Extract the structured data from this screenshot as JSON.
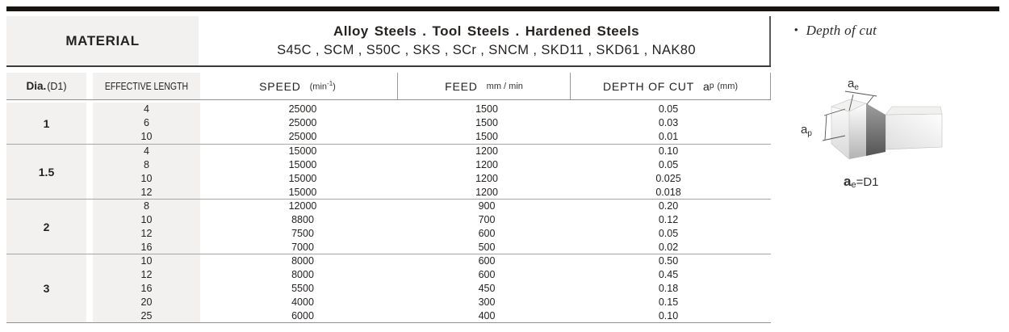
{
  "header": {
    "material_label": "MATERIAL",
    "steel_title": "Alloy  Steels . Tool Steels . Hardened Steels",
    "steel_grades": "S45C , SCM , S50C , SKS , SCr , SNCM , SKD11 , SKD61 , NAK80"
  },
  "columns": {
    "dia_bold": "Dia.",
    "dia_normal": "(D1)",
    "effective_length": "EFFECTIVE LENGTH",
    "speed_label": "SPEED",
    "speed_unit_pre": "(min",
    "speed_unit_sup": "-1",
    "speed_unit_post": ")",
    "feed_label": "FEED",
    "feed_unit": "mm / min",
    "depth_label": "DEPTH OF CUT",
    "depth_sym": "a",
    "depth_sym_sub": "p",
    "depth_unit": "(mm)"
  },
  "table": {
    "groups": [
      {
        "dia": "1",
        "rows": [
          [
            "4",
            "25000",
            "1500",
            "0.05"
          ],
          [
            "6",
            "25000",
            "1500",
            "0.03"
          ],
          [
            "10",
            "25000",
            "1500",
            "0.01"
          ]
        ]
      },
      {
        "dia": "1.5",
        "rows": [
          [
            "4",
            "15000",
            "1200",
            "0.10"
          ],
          [
            "8",
            "15000",
            "1200",
            "0.05"
          ],
          [
            "10",
            "15000",
            "1200",
            "0.025"
          ],
          [
            "12",
            "15000",
            "1200",
            "0.018"
          ]
        ]
      },
      {
        "dia": "2",
        "rows": [
          [
            "8",
            "12000",
            "900",
            "0.20"
          ],
          [
            "10",
            "8800",
            "700",
            "0.12"
          ],
          [
            "12",
            "7500",
            "600",
            "0.05"
          ],
          [
            "16",
            "7000",
            "500",
            "0.02"
          ]
        ]
      },
      {
        "dia": "3",
        "rows": [
          [
            "10",
            "8000",
            "600",
            "0.50"
          ],
          [
            "12",
            "8000",
            "600",
            "0.45"
          ],
          [
            "16",
            "5500",
            "450",
            "0.18"
          ],
          [
            "20",
            "4000",
            "300",
            "0.15"
          ],
          [
            "25",
            "6000",
            "400",
            "0.10"
          ]
        ]
      }
    ]
  },
  "side": {
    "bullet": "•",
    "note": "Depth of cut",
    "label_ae_main": "a",
    "label_ae_sub": "e",
    "label_ap_main": "a",
    "label_ap_sub": "p",
    "caption_main": "a",
    "caption_sub": "e",
    "caption_rest": "=D1"
  },
  "colors": {
    "cell_bg": "#f2f1ef",
    "top_bar": "#17130f",
    "rule_dark": "#3c3c3c",
    "rule_gray": "#8f8f8f",
    "group_rule": "#a6a6a6"
  }
}
